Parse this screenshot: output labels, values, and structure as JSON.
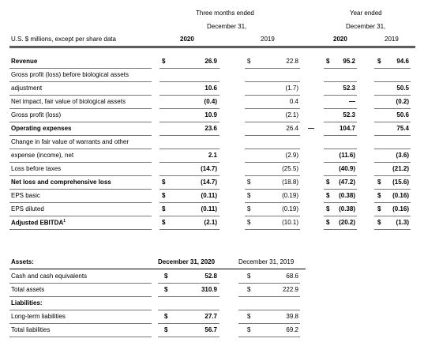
{
  "header": {
    "three_months_line1": "Three months ended",
    "three_months_line2": "December 31,",
    "year_line1": "Year ended",
    "year_line2": "December 31,",
    "units_label": "U.S. $ millions, except per share data",
    "col_q2020": "2020",
    "col_q2019": "2019",
    "col_y2020": "2020",
    "col_y2019": "2019"
  },
  "income_rows": [
    {
      "label": "Revenue",
      "bold": true,
      "d1": "$",
      "v1": "26.9",
      "d2": "$",
      "v2": "22.8",
      "d3": "$",
      "v3": "95.2",
      "d4": "$",
      "v4": "94.6"
    },
    {
      "label": "Gross profit (loss) before biological assets",
      "bold": false,
      "d1": "",
      "v1": "",
      "d2": "",
      "v2": "",
      "d3": "",
      "v3": "",
      "d4": "",
      "v4": ""
    },
    {
      "label": "adjustment",
      "bold": false,
      "d1": "",
      "v1": "10.6",
      "d2": "",
      "v2": "(1.7)",
      "d3": "",
      "v3": "52.3",
      "d4": "",
      "v4": "50.5"
    },
    {
      "label": "Net impact, fair value of biological assets",
      "bold": false,
      "d1": "",
      "v1": "(0.4)",
      "d2": "",
      "v2": "0.4",
      "d3": "",
      "v3": "—",
      "d4": "",
      "v4": "(0.2)"
    },
    {
      "label": "Gross profit (loss)",
      "bold": false,
      "d1": "",
      "v1": "10.9",
      "d2": "",
      "v2": "(2.1)",
      "d3": "",
      "v3": "52.3",
      "d4": "",
      "v4": "50.6"
    },
    {
      "label": "Operating expenses",
      "bold": true,
      "d1": "",
      "v1": "23.6",
      "d2": "",
      "v2": "26.4",
      "d3": "—",
      "v3": "104.7",
      "d4": "",
      "v4": "75.4"
    },
    {
      "label": "Change in fair value of warrants and other",
      "bold": false,
      "d1": "",
      "v1": "",
      "d2": "",
      "v2": "",
      "d3": "",
      "v3": "",
      "d4": "",
      "v4": ""
    },
    {
      "label": "expense (income), net",
      "bold": false,
      "d1": "",
      "v1": "2.1",
      "d2": "",
      "v2": "(2.9)",
      "d3": "",
      "v3": "(11.6)",
      "d4": "",
      "v4": "(3.6)"
    },
    {
      "label": "Loss before taxes",
      "bold": false,
      "d1": "",
      "v1": "(14.7)",
      "d2": "",
      "v2": "(25.5)",
      "d3": "",
      "v3": "(40.9)",
      "d4": "",
      "v4": "(21.2)"
    },
    {
      "label": "Net loss and comprehensive loss",
      "bold": true,
      "d1": "$",
      "v1": "(14.7)",
      "d2": "$",
      "v2": "(18.8)",
      "d3": "$",
      "v3": "(47.2)",
      "d4": "$",
      "v4": "(15.6)"
    },
    {
      "label": "EPS basic",
      "bold": false,
      "d1": "$",
      "v1": "(0.11)",
      "d2": "$",
      "v2": "(0.19)",
      "d3": "$",
      "v3": "(0.38)",
      "d4": "$",
      "v4": "(0.16)"
    },
    {
      "label": "EPS diluted",
      "bold": false,
      "d1": "$",
      "v1": "(0.11)",
      "d2": "$",
      "v2": "(0.19)",
      "d3": "$",
      "v3": "(0.38)",
      "d4": "$",
      "v4": "(0.16)"
    },
    {
      "label": "Adjusted EBITDA",
      "sup": "1",
      "bold": true,
      "d1": "$",
      "v1": "(2.1)",
      "d2": "$",
      "v2": "(10.1)",
      "d3": "$",
      "v3": "(20.2)",
      "d4": "$",
      "v4": "(1.3)"
    }
  ],
  "balance": {
    "assets_heading": "Assets:",
    "col_2020": "December 31, 2020",
    "col_2019": "December 31, 2019",
    "rows": [
      {
        "label": "Cash and cash equivalents",
        "bold": false,
        "d1": "$",
        "v1": "52.8",
        "d2": "$",
        "v2": "68.6"
      },
      {
        "label": "Total assets",
        "bold": false,
        "d1": "$",
        "v1": "310.9",
        "d2": "$",
        "v2": "222.9"
      },
      {
        "label": "Liabilities:",
        "bold": true,
        "d1": "",
        "v1": "",
        "d2": "",
        "v2": ""
      },
      {
        "label": "Long-term liabilities",
        "bold": false,
        "d1": "$",
        "v1": "27.7",
        "d2": "$",
        "v2": "39.8"
      },
      {
        "label": "Total liabilities",
        "bold": false,
        "d1": "$",
        "v1": "56.7",
        "d2": "$",
        "v2": "69.2"
      }
    ]
  }
}
